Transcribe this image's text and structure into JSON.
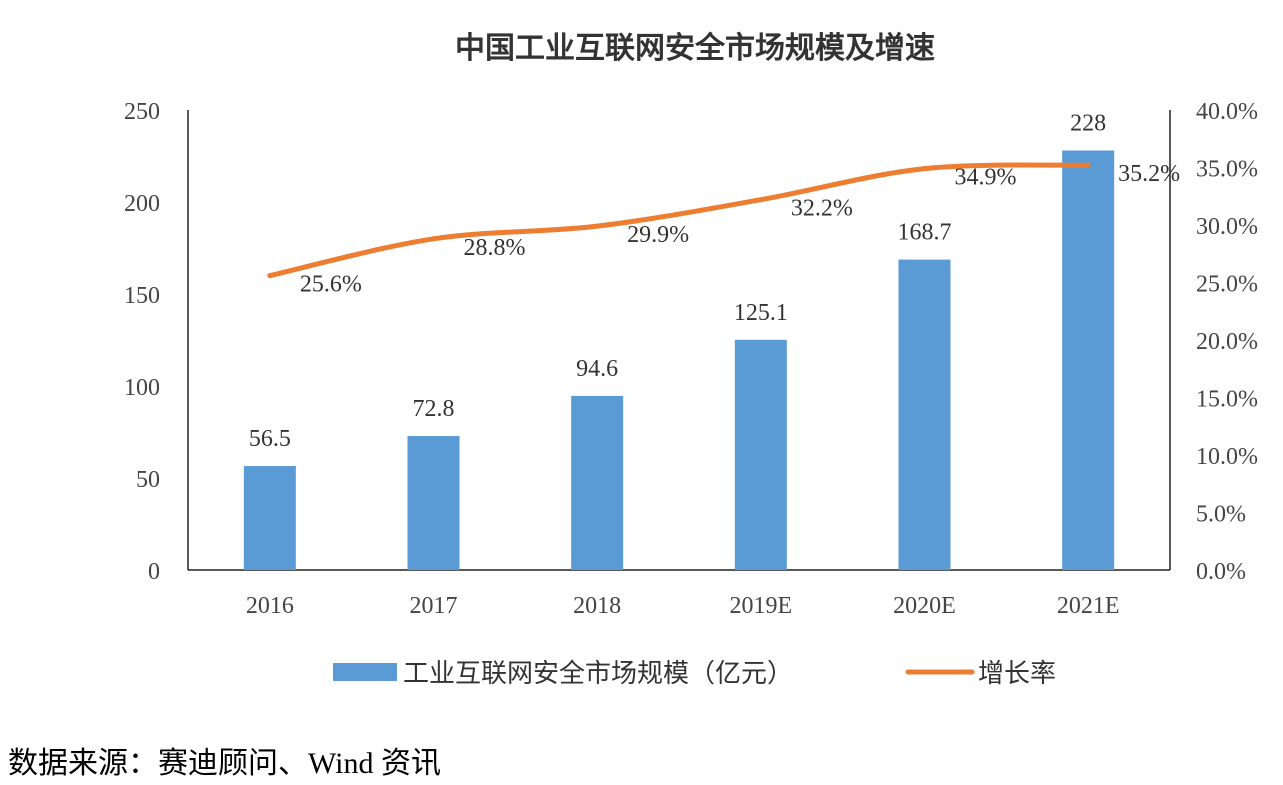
{
  "chart_data": {
    "type": "bar+line",
    "title": "中国工业互联网安全市场规模及增速",
    "categories": [
      "2016",
      "2017",
      "2018",
      "2019E",
      "2020E",
      "2021E"
    ],
    "series": [
      {
        "name": "工业互联网安全市场规模（亿元）",
        "type": "bar",
        "axis": "left",
        "values": [
          56.5,
          72.8,
          94.6,
          125.1,
          168.7,
          228
        ],
        "labels": [
          "56.5",
          "72.8",
          "94.6",
          "125.1",
          "168.7",
          "228"
        ],
        "color": "#5b9bd5"
      },
      {
        "name": "增长率",
        "type": "line",
        "axis": "right",
        "values": [
          25.6,
          28.8,
          29.9,
          32.2,
          34.9,
          35.2
        ],
        "labels": [
          "25.6%",
          "28.8%",
          "29.9%",
          "32.2%",
          "34.9%",
          "35.2%"
        ],
        "color": "#ed7d31"
      }
    ],
    "y_left": {
      "lim": [
        0,
        250
      ],
      "ticks": [
        "0",
        "50",
        "100",
        "150",
        "200",
        "250"
      ]
    },
    "y_right": {
      "lim": [
        0,
        40
      ],
      "ticks": [
        "0.0%",
        "5.0%",
        "10.0%",
        "15.0%",
        "20.0%",
        "25.0%",
        "30.0%",
        "35.0%",
        "40.0%"
      ]
    },
    "grid": false,
    "legend": "bottom-center"
  },
  "source_note": "数据来源：赛迪顾问、Wind 资讯"
}
